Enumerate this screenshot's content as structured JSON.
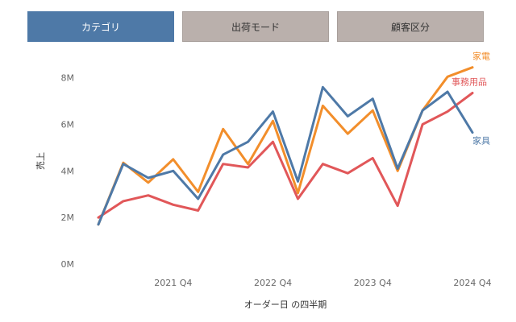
{
  "tabs": [
    {
      "label": "カテゴリ",
      "active": true
    },
    {
      "label": "出荷モード",
      "active": false
    },
    {
      "label": "顧客区分",
      "active": false
    }
  ],
  "chart_data": {
    "type": "line",
    "xlabel": "オーダー日 の四半期",
    "ylabel": "売上",
    "ylim": [
      0,
      9200000
    ],
    "yticks": [
      0,
      2000000,
      4000000,
      6000000,
      8000000
    ],
    "ytick_labels": [
      "0M",
      "2M",
      "4M",
      "6M",
      "8M"
    ],
    "x": [
      "2021 Q1",
      "2021 Q2",
      "2021 Q3",
      "2021 Q4",
      "2022 Q1",
      "2022 Q2",
      "2022 Q3",
      "2022 Q4",
      "2023 Q1",
      "2023 Q2",
      "2023 Q3",
      "2023 Q4",
      "2024 Q1",
      "2024 Q2",
      "2024 Q3",
      "2024 Q4"
    ],
    "xtick_labels": [
      "2021 Q4",
      "2022 Q4",
      "2023 Q4",
      "2024 Q4"
    ],
    "xtick_indices": [
      3,
      7,
      11,
      15
    ],
    "grid": false,
    "series": [
      {
        "name": "家電",
        "color": "#f28e2b",
        "values": [
          1700000,
          4350000,
          3500000,
          4500000,
          3100000,
          5800000,
          4300000,
          6150000,
          3050000,
          6800000,
          5600000,
          6600000,
          4000000,
          6600000,
          8050000,
          8450000
        ]
      },
      {
        "name": "事務用品",
        "color": "#e15759",
        "values": [
          2000000,
          2700000,
          2950000,
          2550000,
          2300000,
          4300000,
          4150000,
          5250000,
          2800000,
          4300000,
          3900000,
          4550000,
          2500000,
          6000000,
          6550000,
          7350000
        ]
      },
      {
        "name": "家具",
        "color": "#4e79a7",
        "values": [
          1700000,
          4300000,
          3700000,
          4000000,
          2800000,
          4700000,
          5250000,
          6550000,
          3550000,
          7600000,
          6350000,
          7100000,
          4100000,
          6600000,
          7400000,
          5650000
        ]
      }
    ]
  }
}
